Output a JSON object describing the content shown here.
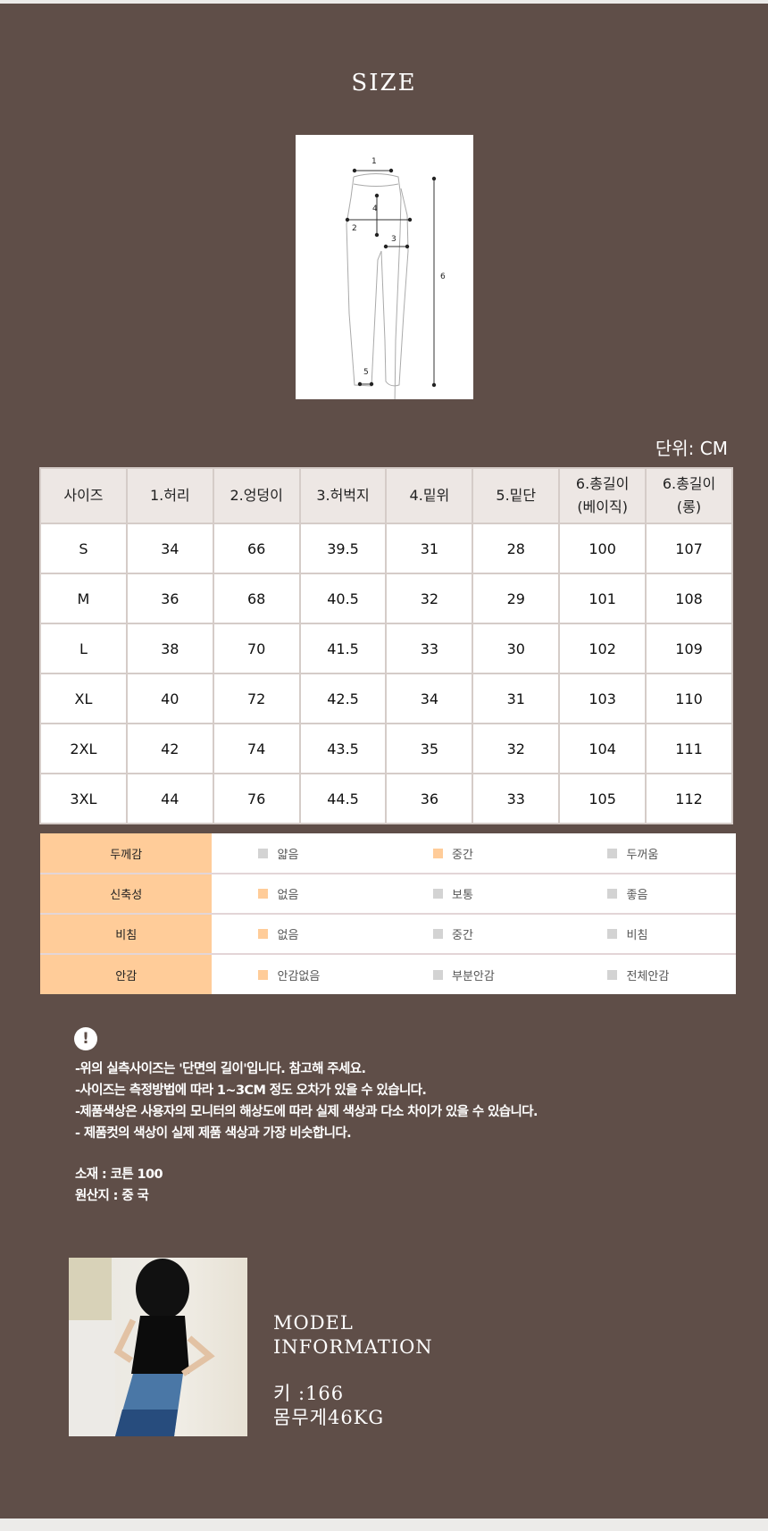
{
  "title": "SIZE",
  "diagram": {
    "labels": [
      "1",
      "2",
      "3",
      "4",
      "5",
      "6"
    ]
  },
  "unit": "단위: CM",
  "size_table": {
    "headers": [
      "사이즈",
      "1.허리",
      "2.엉덩이",
      "3.허벅지",
      "4.밑위",
      "5.밑단",
      "6.총길이\n(베이직)",
      "6.총길이\n(롱)"
    ],
    "rows": [
      [
        "S",
        "34",
        "66",
        "39.5",
        "31",
        "28",
        "100",
        "107"
      ],
      [
        "M",
        "36",
        "68",
        "40.5",
        "32",
        "29",
        "101",
        "108"
      ],
      [
        "L",
        "38",
        "70",
        "41.5",
        "33",
        "30",
        "102",
        "109"
      ],
      [
        "XL",
        "40",
        "72",
        "42.5",
        "34",
        "31",
        "103",
        "110"
      ],
      [
        "2XL",
        "42",
        "74",
        "43.5",
        "35",
        "32",
        "104",
        "111"
      ],
      [
        "3XL",
        "44",
        "76",
        "44.5",
        "36",
        "33",
        "105",
        "112"
      ]
    ]
  },
  "fabric": {
    "accent": "#ffcc99",
    "rows": [
      {
        "label": "두께감",
        "options": [
          "얇음",
          "중간",
          "두꺼움"
        ],
        "selected": 1
      },
      {
        "label": "신축성",
        "options": [
          "없음",
          "보통",
          "좋음"
        ],
        "selected": 0
      },
      {
        "label": "비침",
        "options": [
          "없음",
          "중간",
          "비침"
        ],
        "selected": 0
      },
      {
        "label": "안감",
        "options": [
          "안감없음",
          "부분안감",
          "전체안감"
        ],
        "selected": 0
      }
    ]
  },
  "notice": {
    "icon": "exclamation-icon",
    "lines": [
      "-위의 실측사이즈는 '단면의 길이'입니다. 참고해 주세요.",
      "-사이즈는 측정방법에 따라 1~3CM 정도 오차가 있을 수 있습니다.",
      "-제품색상은 사용자의 모니터의 해상도에 따라 실제 색상과 다소 차이가 있을 수 있습니다.",
      "- 제품컷의 색상이 실제 제품 색상과 가장 비슷합니다."
    ],
    "material": "소재 : 코튼 100",
    "origin": "원산지 : 중 국"
  },
  "model": {
    "heading1": "MODEL",
    "heading2": "INFORMATION",
    "height": "키 :166",
    "weight": "몸무게46KG"
  }
}
